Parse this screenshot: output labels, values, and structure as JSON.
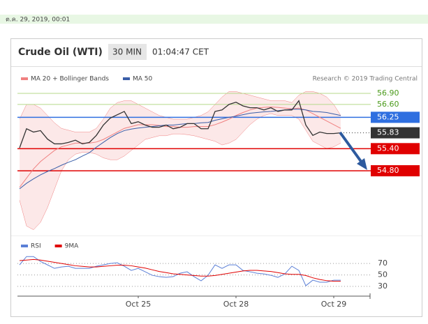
{
  "date_line": "ต.ค. 29, 2019, 00:01",
  "header": {
    "instrument": "Crude Oil (WTI)",
    "interval": "30 MIN",
    "time": "01:04:47 CET"
  },
  "chart_data": [
    {
      "type": "line",
      "source": "Research © 2019 Trading Central",
      "ylim": [
        53.1,
        57.07
      ],
      "color": "#333333",
      "values": [
        55.42,
        55.94,
        55.85,
        55.89,
        55.66,
        55.53,
        55.53,
        55.57,
        55.63,
        55.53,
        55.57,
        55.76,
        56.04,
        56.23,
        56.32,
        56.41,
        56.08,
        56.13,
        56.04,
        55.98,
        55.98,
        56.04,
        55.94,
        55.98,
        56.08,
        56.08,
        55.94,
        55.94,
        56.41,
        56.45,
        56.6,
        56.66,
        56.56,
        56.51,
        56.51,
        56.45,
        56.51,
        56.41,
        56.45,
        56.45,
        56.7,
        56.04,
        55.76,
        55.85,
        55.81,
        55.81,
        55.83
      ],
      "series": [
        {
          "name": "MA 20 + Bollinger Bands",
          "color": "#f08080",
          "values": [
            54.35,
            54.6,
            54.85,
            55.05,
            55.2,
            55.35,
            55.45,
            55.5,
            55.55,
            55.55,
            55.55,
            55.58,
            55.65,
            55.75,
            55.85,
            55.95,
            56.0,
            56.05,
            56.05,
            56.05,
            56.03,
            56.0,
            56.0,
            55.98,
            55.98,
            56.0,
            56.0,
            56.0,
            56.05,
            56.12,
            56.2,
            56.3,
            56.38,
            56.45,
            56.5,
            56.52,
            56.53,
            56.52,
            56.5,
            56.48,
            56.5,
            56.45,
            56.35,
            56.25,
            56.15,
            56.05,
            55.95
          ],
          "upper": [
            56.2,
            56.6,
            56.6,
            56.5,
            56.3,
            56.1,
            55.95,
            55.9,
            55.85,
            55.85,
            55.85,
            55.95,
            56.2,
            56.5,
            56.65,
            56.7,
            56.7,
            56.6,
            56.5,
            56.4,
            56.3,
            56.25,
            56.2,
            56.2,
            56.2,
            56.25,
            56.3,
            56.4,
            56.6,
            56.8,
            56.95,
            56.95,
            56.9,
            56.85,
            56.8,
            56.75,
            56.7,
            56.7,
            56.7,
            56.65,
            56.85,
            56.95,
            56.95,
            56.9,
            56.8,
            56.6,
            56.3
          ],
          "lower": [
            54.0,
            53.3,
            53.2,
            53.4,
            53.8,
            54.3,
            54.8,
            55.1,
            55.25,
            55.3,
            55.3,
            55.25,
            55.15,
            55.1,
            55.1,
            55.2,
            55.35,
            55.5,
            55.65,
            55.7,
            55.75,
            55.75,
            55.8,
            55.8,
            55.78,
            55.75,
            55.7,
            55.65,
            55.6,
            55.5,
            55.55,
            55.65,
            55.85,
            56.05,
            56.2,
            56.3,
            56.35,
            56.3,
            56.3,
            56.3,
            56.2,
            55.9,
            55.6,
            55.5,
            55.4,
            55.45,
            55.55
          ]
        },
        {
          "name": "MA 50",
          "color": "#3a5ea8",
          "values": [
            54.31,
            54.46,
            54.58,
            54.69,
            54.78,
            54.86,
            54.95,
            55.03,
            55.1,
            55.2,
            55.29,
            55.44,
            55.57,
            55.7,
            55.81,
            55.89,
            55.93,
            55.96,
            55.98,
            56.0,
            56.02,
            56.04,
            56.04,
            56.06,
            56.08,
            56.08,
            56.1,
            56.11,
            56.17,
            56.21,
            56.25,
            56.28,
            56.32,
            56.36,
            56.38,
            56.4,
            56.41,
            56.43,
            56.45,
            56.47,
            56.47,
            56.45,
            56.41,
            56.4,
            56.38,
            56.34,
            56.3
          ]
        }
      ],
      "levels": [
        {
          "value": 56.9,
          "label": "56.90",
          "color": "#b5d98a",
          "text_color": "#4a9a1a",
          "badge": false
        },
        {
          "value": 56.6,
          "label": "56.60",
          "color": "#b5d98a",
          "text_color": "#4a9a1a",
          "badge": false
        },
        {
          "value": 56.25,
          "label": "56.25",
          "color": "#2f6fe0",
          "text_color": "#ffffff",
          "badge": true
        },
        {
          "value": 55.83,
          "label": "55.83",
          "color": "#333333",
          "text_color": "#ffffff",
          "badge": true,
          "dotted": true
        },
        {
          "value": 55.4,
          "label": "55.40",
          "color": "#e00000",
          "text_color": "#ffffff",
          "badge": true
        },
        {
          "value": 54.8,
          "label": "54.80",
          "color": "#e00000",
          "text_color": "#ffffff",
          "badge": true
        }
      ]
    },
    {
      "type": "line",
      "ylim": [
        13,
        86
      ],
      "yticks": [
        70,
        50,
        30
      ],
      "grid": true,
      "categories": [
        null,
        null,
        null,
        null,
        null,
        null,
        null,
        null,
        null,
        null,
        null,
        null,
        null,
        null,
        null,
        null,
        null,
        "Oct 25",
        null,
        null,
        null,
        null,
        null,
        null,
        null,
        null,
        null,
        null,
        null,
        null,
        null,
        "Oct 28",
        null,
        null,
        null,
        null,
        null,
        null,
        null,
        null,
        null,
        null,
        null,
        null,
        null,
        "Oct 29",
        null
      ],
      "series": [
        {
          "name": "RSI",
          "color": "#5b7fd6",
          "values": [
            67.6,
            82.1,
            82.1,
            73.6,
            67.6,
            61.5,
            63.9,
            65.2,
            61.5,
            61.5,
            61.5,
            65.2,
            67.6,
            70,
            71.2,
            65.2,
            57.9,
            61.5,
            55.5,
            49.4,
            47,
            45.8,
            47,
            53,
            55.5,
            47,
            39.7,
            49.4,
            67.6,
            61.5,
            67.6,
            67.6,
            57.9,
            55.5,
            53,
            51.8,
            49.4,
            45.8,
            51.8,
            65.2,
            57.9,
            31.2,
            40.9,
            37.3,
            37.3,
            40.9,
            40.9
          ]
        },
        {
          "name": "9MA",
          "color": "#e00000",
          "values": [
            75,
            76,
            77,
            76,
            74,
            72,
            70,
            68,
            66,
            65,
            64,
            64,
            65,
            66,
            67,
            67,
            66,
            64,
            62,
            59,
            56,
            54,
            52,
            51,
            50,
            49,
            48,
            48,
            49,
            51,
            53,
            55,
            57,
            58,
            58,
            57,
            56,
            54,
            52,
            51,
            51,
            49,
            45,
            42,
            40,
            39,
            39
          ]
        }
      ]
    }
  ]
}
